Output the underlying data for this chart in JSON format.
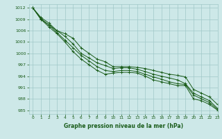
{
  "title": "",
  "xlabel": "Graphe pression niveau de la mer (hPa)",
  "ylabel": "",
  "xlim": [
    -0.5,
    23
  ],
  "ylim": [
    984,
    1013
  ],
  "yticks": [
    985,
    988,
    991,
    994,
    997,
    1000,
    1003,
    1006,
    1009,
    1012
  ],
  "xticks": [
    0,
    1,
    2,
    3,
    4,
    5,
    6,
    7,
    8,
    9,
    10,
    11,
    12,
    13,
    14,
    15,
    16,
    17,
    18,
    19,
    20,
    21,
    22,
    23
  ],
  "background_color": "#cde8e8",
  "grid_color": "#a0c8c8",
  "line_color": "#1a5c1a",
  "series": [
    [
      1012,
      1009.5,
      1008,
      1006,
      1005.2,
      1004,
      1001.5,
      1000,
      998.5,
      997.8,
      996.5,
      996.5,
      996.5,
      996.3,
      996.0,
      995.5,
      995.0,
      994.5,
      994.2,
      993.8,
      990.5,
      989.5,
      988.5,
      986.5
    ],
    [
      1012,
      1009.2,
      1007.5,
      1006,
      1004.5,
      1002.5,
      1000,
      998.8,
      997.5,
      996.8,
      996.0,
      996.2,
      996.2,
      995.8,
      995.2,
      994.5,
      994.0,
      993.5,
      993.0,
      992.0,
      989.5,
      988.5,
      987.5,
      985.5
    ],
    [
      1012,
      1009,
      1007.5,
      1005.5,
      1003.5,
      1001.5,
      999.5,
      998.0,
      996.5,
      995.5,
      995.2,
      995.5,
      995.5,
      995.2,
      994.5,
      993.8,
      993.2,
      992.5,
      992.0,
      991.8,
      989.0,
      988.0,
      987.0,
      985.2
    ],
    [
      1012,
      1009,
      1007.0,
      1005.2,
      1003.0,
      1000.5,
      998.5,
      997.0,
      995.5,
      994.5,
      994.8,
      995.0,
      995.0,
      994.8,
      994.0,
      993.0,
      992.5,
      992.0,
      991.5,
      991.5,
      988.0,
      987.5,
      986.5,
      985.0
    ]
  ]
}
